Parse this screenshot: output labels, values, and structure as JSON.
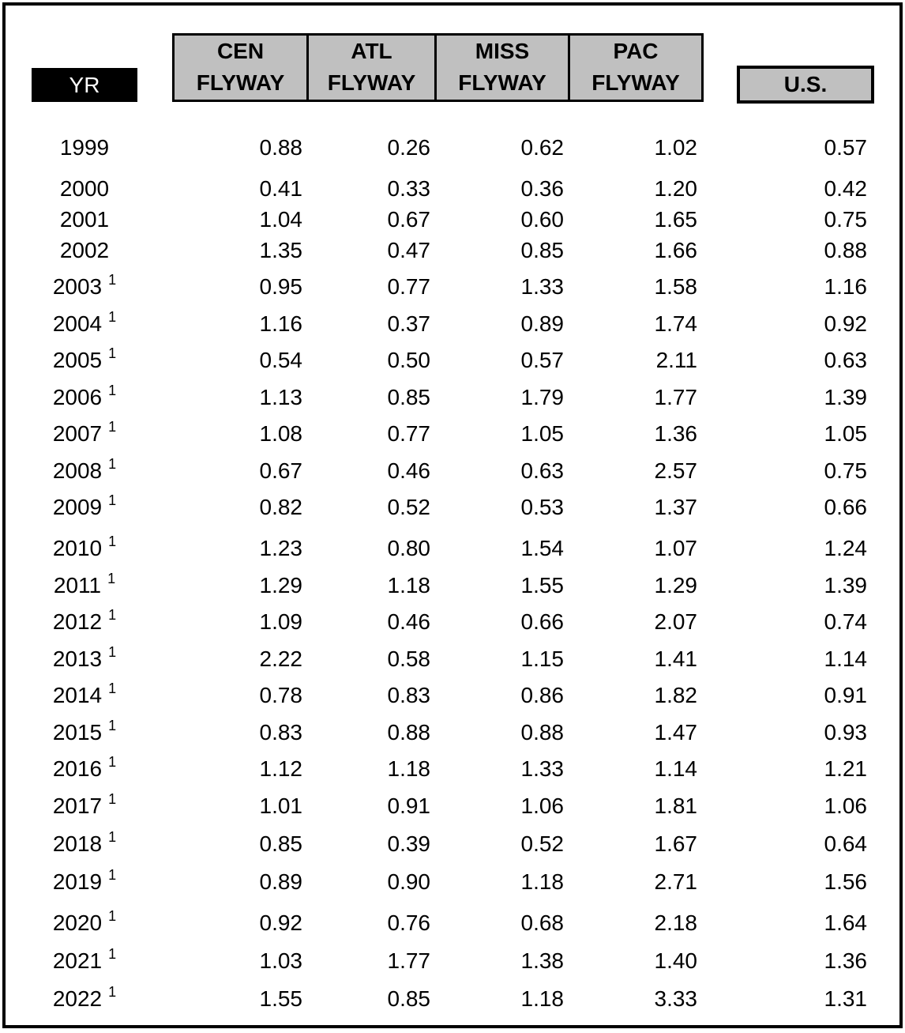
{
  "table": {
    "headers": {
      "year": "YR",
      "flyways": [
        {
          "line1": "CEN",
          "line2": "FLYWAY"
        },
        {
          "line1": "ATL",
          "line2": "FLYWAY"
        },
        {
          "line1": "MISS",
          "line2": "FLYWAY"
        },
        {
          "line1": "PAC",
          "line2": "FLYWAY"
        }
      ],
      "us": "U.S."
    },
    "rows": [
      {
        "year": "1999",
        "note": "",
        "cen": "0.88",
        "atl": "0.26",
        "miss": "0.62",
        "pac": "1.02",
        "us": "0.57"
      },
      {
        "year": "2000",
        "note": "",
        "cen": "0.41",
        "atl": "0.33",
        "miss": "0.36",
        "pac": "1.20",
        "us": "0.42"
      },
      {
        "year": "2001",
        "note": "",
        "cen": "1.04",
        "atl": "0.67",
        "miss": "0.60",
        "pac": "1.65",
        "us": "0.75"
      },
      {
        "year": "2002",
        "note": "",
        "cen": "1.35",
        "atl": "0.47",
        "miss": "0.85",
        "pac": "1.66",
        "us": "0.88"
      },
      {
        "year": "2003",
        "note": "1",
        "cen": "0.95",
        "atl": "0.77",
        "miss": "1.33",
        "pac": "1.58",
        "us": "1.16"
      },
      {
        "year": "2004",
        "note": "1",
        "cen": "1.16",
        "atl": "0.37",
        "miss": "0.89",
        "pac": "1.74",
        "us": "0.92"
      },
      {
        "year": "2005",
        "note": "1",
        "cen": "0.54",
        "atl": "0.50",
        "miss": "0.57",
        "pac": "2.11",
        "us": "0.63"
      },
      {
        "year": "2006",
        "note": "1",
        "cen": "1.13",
        "atl": "0.85",
        "miss": "1.79",
        "pac": "1.77",
        "us": "1.39"
      },
      {
        "year": "2007",
        "note": "1",
        "cen": "1.08",
        "atl": "0.77",
        "miss": "1.05",
        "pac": "1.36",
        "us": "1.05"
      },
      {
        "year": "2008",
        "note": "1",
        "cen": "0.67",
        "atl": "0.46",
        "miss": "0.63",
        "pac": "2.57",
        "us": "0.75"
      },
      {
        "year": "2009",
        "note": "1",
        "cen": "0.82",
        "atl": "0.52",
        "miss": "0.53",
        "pac": "1.37",
        "us": "0.66"
      },
      {
        "year": "2010",
        "note": "1",
        "cen": "1.23",
        "atl": "0.80",
        "miss": "1.54",
        "pac": "1.07",
        "us": "1.24"
      },
      {
        "year": "2011",
        "note": "1",
        "cen": "1.29",
        "atl": "1.18",
        "miss": "1.55",
        "pac": "1.29",
        "us": "1.39"
      },
      {
        "year": "2012",
        "note": "1",
        "cen": "1.09",
        "atl": "0.46",
        "miss": "0.66",
        "pac": "2.07",
        "us": "0.74"
      },
      {
        "year": "2013",
        "note": "1",
        "cen": "2.22",
        "atl": "0.58",
        "miss": "1.15",
        "pac": "1.41",
        "us": "1.14"
      },
      {
        "year": "2014",
        "note": "1",
        "cen": "0.78",
        "atl": "0.83",
        "miss": "0.86",
        "pac": "1.82",
        "us": "0.91"
      },
      {
        "year": "2015",
        "note": "1",
        "cen": "0.83",
        "atl": "0.88",
        "miss": "0.88",
        "pac": "1.47",
        "us": "0.93"
      },
      {
        "year": "2016",
        "note": "1",
        "cen": "1.12",
        "atl": "1.18",
        "miss": "1.33",
        "pac": "1.14",
        "us": "1.21"
      },
      {
        "year": "2017",
        "note": "1",
        "cen": "1.01",
        "atl": "0.91",
        "miss": "1.06",
        "pac": "1.81",
        "us": "1.06"
      },
      {
        "year": "2018",
        "note": "1",
        "cen": "0.85",
        "atl": "0.39",
        "miss": "0.52",
        "pac": "1.67",
        "us": "0.64"
      },
      {
        "year": "2019",
        "note": "1",
        "cen": "0.89",
        "atl": "0.90",
        "miss": "1.18",
        "pac": "2.71",
        "us": "1.56"
      },
      {
        "year": "2020",
        "note": "1",
        "cen": "0.92",
        "atl": "0.76",
        "miss": "0.68",
        "pac": "2.18",
        "us": "1.64"
      },
      {
        "year": "2021",
        "note": "1",
        "cen": "1.03",
        "atl": "1.77",
        "miss": "1.38",
        "pac": "1.40",
        "us": "1.36"
      },
      {
        "year": "2022",
        "note": "1",
        "cen": "1.55",
        "atl": "0.85",
        "miss": "1.18",
        "pac": "3.33",
        "us": "1.31"
      }
    ]
  }
}
